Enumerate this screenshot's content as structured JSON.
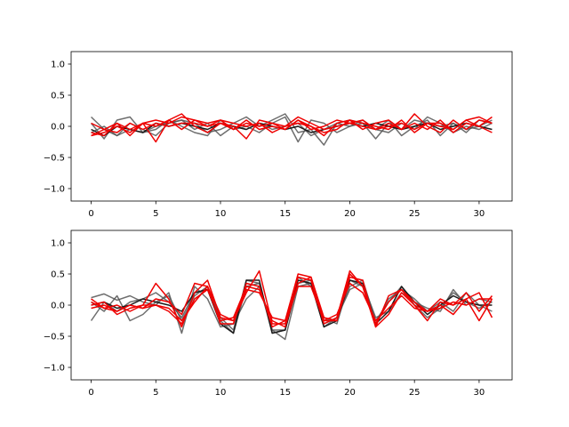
{
  "chart_data": [
    {
      "type": "line",
      "title": "",
      "xlabel": "",
      "ylabel": "",
      "xlim": [
        -1.55,
        32.55
      ],
      "ylim": [
        -1.2,
        1.2
      ],
      "xticks": [
        0,
        5,
        10,
        15,
        20,
        25,
        30
      ],
      "xtick_labels": [
        "0",
        "5",
        "10",
        "15",
        "20",
        "25",
        "30"
      ],
      "yticks": [
        1.0,
        0.5,
        0.0,
        -0.5,
        -1.0
      ],
      "ytick_labels": [
        "1.0",
        "0.5",
        "0.0",
        "−0.5",
        "−1.0"
      ],
      "grid": false,
      "x": [
        0,
        1,
        2,
        3,
        4,
        5,
        6,
        7,
        8,
        9,
        10,
        11,
        12,
        13,
        14,
        15,
        16,
        17,
        18,
        19,
        20,
        21,
        22,
        23,
        24,
        25,
        26,
        27,
        28,
        29,
        30,
        31
      ],
      "series": [
        {
          "color": "#555555",
          "values": [
            0.15,
            -0.05,
            -0.15,
            0.05,
            -0.05,
            -0.15,
            0.05,
            0.1,
            0.05,
            -0.1,
            -0.05,
            0.05,
            0.15,
            0.0,
            0.1,
            0.2,
            -0.1,
            -0.05,
            -0.3,
            0.05,
            0.1,
            0.05,
            -0.2,
            0.05,
            -0.05,
            0.1,
            0.05,
            0.0,
            0.05,
            -0.1,
            0.1,
            0.05
          ]
        },
        {
          "color": "#555555",
          "values": [
            0.05,
            -0.2,
            0.1,
            0.15,
            -0.1,
            -0.05,
            0.1,
            0.0,
            -0.1,
            -0.15,
            0.1,
            -0.05,
            0.0,
            -0.1,
            0.05,
            0.15,
            -0.25,
            0.1,
            0.05,
            -0.1,
            0.0,
            0.05,
            -0.05,
            0.1,
            -0.15,
            0.0,
            0.1,
            -0.15,
            0.05,
            -0.05,
            0.0,
            0.1
          ]
        },
        {
          "color": "#555555",
          "values": [
            -0.1,
            0.0,
            -0.15,
            -0.05,
            -0.1,
            0.0,
            0.05,
            0.1,
            -0.05,
            0.05,
            -0.15,
            0.0,
            -0.05,
            0.05,
            -0.05,
            0.0,
            0.05,
            -0.15,
            -0.05,
            0.05,
            0.0,
            0.1,
            -0.05,
            -0.1,
            0.05,
            -0.05,
            0.15,
            0.05,
            -0.1,
            0.0,
            -0.05,
            0.05
          ]
        },
        {
          "color": "#1a1a1a",
          "values": [
            -0.05,
            -0.15,
            0.0,
            -0.05,
            -0.1,
            0.05,
            0.0,
            0.05,
            0.0,
            -0.05,
            0.05,
            0.0,
            -0.05,
            0.05,
            0.0,
            -0.05,
            0.0,
            -0.1,
            -0.05,
            0.0,
            0.05,
            0.0,
            0.05,
            0.0,
            -0.05,
            0.0,
            0.05,
            -0.05,
            0.0,
            0.05,
            0.0,
            -0.05
          ]
        },
        {
          "color": "#ee0000",
          "values": [
            0.05,
            -0.05,
            0.05,
            -0.15,
            0.05,
            0.1,
            0.05,
            0.15,
            0.1,
            0.05,
            0.1,
            -0.05,
            0.05,
            0.0,
            0.05,
            -0.05,
            0.1,
            -0.05,
            0.0,
            0.1,
            0.05,
            0.0,
            -0.05,
            0.05,
            -0.05,
            0.2,
            0.0,
            -0.1,
            0.1,
            -0.05,
            0.1,
            0.05
          ]
        },
        {
          "color": "#ee0000",
          "values": [
            -0.15,
            -0.1,
            0.0,
            -0.1,
            0.05,
            -0.25,
            0.1,
            0.2,
            0.0,
            -0.1,
            0.05,
            0.0,
            -0.2,
            0.1,
            0.05,
            0.0,
            0.05,
            0.0,
            -0.15,
            0.05,
            0.1,
            -0.05,
            0.05,
            0.1,
            -0.05,
            0.05,
            -0.05,
            0.1,
            -0.1,
            0.05,
            0.0,
            -0.1
          ]
        },
        {
          "color": "#ee0000",
          "values": [
            -0.1,
            -0.15,
            0.05,
            -0.05,
            0.05,
            0.0,
            0.1,
            -0.05,
            0.1,
            0.0,
            0.05,
            -0.05,
            0.1,
            -0.05,
            0.0,
            -0.05,
            0.1,
            0.0,
            -0.1,
            -0.05,
            0.1,
            0.05,
            0.0,
            -0.05,
            0.1,
            -0.1,
            0.05,
            0.0,
            -0.05,
            0.1,
            0.0,
            0.15
          ]
        },
        {
          "color": "#ee0000",
          "values": [
            -0.15,
            -0.05,
            -0.1,
            0.05,
            -0.05,
            0.05,
            0.0,
            0.05,
            0.05,
            0.0,
            0.1,
            0.05,
            0.0,
            0.05,
            -0.1,
            0.0,
            0.15,
            0.05,
            -0.05,
            0.0,
            0.05,
            0.1,
            -0.05,
            0.0,
            0.05,
            -0.05,
            0.05,
            0.05,
            -0.05,
            0.1,
            0.15,
            0.05
          ]
        }
      ]
    },
    {
      "type": "line",
      "title": "",
      "xlabel": "",
      "ylabel": "",
      "xlim": [
        -1.55,
        32.55
      ],
      "ylim": [
        -1.2,
        1.2
      ],
      "xticks": [
        0,
        5,
        10,
        15,
        20,
        25,
        30
      ],
      "xtick_labels": [
        "0",
        "5",
        "10",
        "15",
        "20",
        "25",
        "30"
      ],
      "yticks": [
        1.0,
        0.5,
        0.0,
        -0.5,
        -1.0
      ],
      "ytick_labels": [
        "1.0",
        "0.5",
        "0.0",
        "−0.5",
        "−1.0"
      ],
      "grid": false,
      "x": [
        0,
        1,
        2,
        3,
        4,
        5,
        6,
        7,
        8,
        9,
        10,
        11,
        12,
        13,
        14,
        15,
        16,
        17,
        18,
        19,
        20,
        21,
        22,
        23,
        24,
        25,
        26,
        27,
        28,
        29,
        30,
        31
      ],
      "series": [
        {
          "color": "#555555",
          "values": [
            0.12,
            0.18,
            0.08,
            0.15,
            0.05,
            0.0,
            0.2,
            -0.45,
            0.3,
            0.1,
            -0.35,
            -0.3,
            0.1,
            0.3,
            -0.4,
            -0.55,
            0.3,
            0.35,
            -0.35,
            -0.2,
            0.3,
            0.4,
            -0.25,
            0.05,
            0.3,
            0.0,
            -0.2,
            -0.05,
            0.2,
            0.05,
            -0.05,
            0.05
          ]
        },
        {
          "color": "#555555",
          "values": [
            -0.25,
            0.05,
            -0.1,
            0.05,
            0.1,
            0.2,
            0.05,
            -0.2,
            0.2,
            0.25,
            -0.2,
            -0.4,
            0.4,
            0.35,
            -0.45,
            -0.4,
            0.45,
            0.3,
            -0.2,
            -0.3,
            0.4,
            0.3,
            -0.3,
            0.1,
            0.25,
            0.1,
            -0.1,
            0.05,
            -0.1,
            0.2,
            0.0,
            -0.1
          ]
        },
        {
          "color": "#555555",
          "values": [
            0.05,
            -0.1,
            0.15,
            -0.25,
            -0.15,
            0.05,
            0.15,
            -0.25,
            0.15,
            0.3,
            -0.25,
            -0.45,
            0.3,
            0.35,
            -0.4,
            -0.4,
            0.35,
            0.4,
            -0.3,
            -0.2,
            0.25,
            0.35,
            -0.2,
            -0.1,
            0.2,
            0.05,
            -0.05,
            -0.1,
            0.25,
            0.0,
            0.1,
            0.05
          ]
        },
        {
          "color": "#1a1a1a",
          "values": [
            0.0,
            0.05,
            -0.05,
            0.0,
            0.1,
            0.05,
            0.0,
            -0.1,
            0.2,
            0.25,
            -0.3,
            -0.45,
            0.4,
            0.4,
            -0.45,
            -0.4,
            0.4,
            0.35,
            -0.35,
            -0.25,
            0.4,
            0.35,
            -0.3,
            -0.1,
            0.3,
            0.05,
            -0.15,
            0.0,
            0.15,
            0.05,
            0.0,
            0.0
          ]
        },
        {
          "color": "#ee0000",
          "values": [
            0.05,
            -0.05,
            0.0,
            -0.1,
            0.0,
            0.35,
            0.1,
            -0.35,
            0.2,
            0.4,
            -0.2,
            -0.25,
            0.2,
            0.55,
            -0.3,
            -0.3,
            0.45,
            0.4,
            -0.3,
            -0.2,
            0.55,
            0.3,
            -0.35,
            0.15,
            0.25,
            0.0,
            -0.25,
            0.05,
            0.0,
            0.2,
            -0.1,
            0.15
          ]
        },
        {
          "color": "#ee0000",
          "values": [
            -0.05,
            0.0,
            -0.1,
            0.0,
            -0.05,
            0.1,
            0.05,
            -0.15,
            0.35,
            0.3,
            -0.3,
            -0.3,
            0.35,
            0.3,
            -0.35,
            -0.25,
            0.5,
            0.45,
            -0.25,
            -0.25,
            0.5,
            0.3,
            -0.3,
            0.05,
            0.25,
            0.05,
            -0.1,
            0.1,
            0.0,
            0.1,
            0.2,
            -0.2
          ]
        },
        {
          "color": "#ee0000",
          "values": [
            0.1,
            -0.05,
            -0.1,
            0.0,
            -0.05,
            0.0,
            -0.1,
            -0.3,
            0.1,
            0.25,
            -0.25,
            -0.2,
            0.3,
            0.25,
            -0.25,
            -0.35,
            0.35,
            0.45,
            -0.2,
            -0.25,
            0.45,
            0.4,
            -0.35,
            -0.15,
            0.2,
            0.0,
            -0.1,
            0.0,
            -0.15,
            0.1,
            -0.25,
            0.1
          ]
        },
        {
          "color": "#ee0000",
          "values": [
            0.0,
            0.05,
            -0.15,
            -0.05,
            0.0,
            0.0,
            -0.05,
            -0.25,
            0.05,
            0.3,
            -0.15,
            -0.25,
            0.25,
            0.2,
            -0.2,
            -0.25,
            0.3,
            0.3,
            -0.25,
            -0.15,
            0.35,
            0.2,
            -0.25,
            -0.05,
            0.15,
            -0.05,
            -0.1,
            -0.05,
            0.05,
            0.0,
            0.1,
            0.1
          ]
        }
      ]
    }
  ]
}
